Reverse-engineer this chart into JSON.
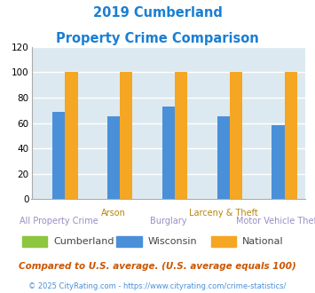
{
  "title_line1": "2019 Cumberland",
  "title_line2": "Property Crime Comparison",
  "title_color": "#1a7fd4",
  "groups": [
    "All Property Crime",
    "Arson",
    "Burglary",
    "Larceny & Theft",
    "Motor Vehicle Theft"
  ],
  "xtick_labels_row1": [
    "",
    "Arson",
    "",
    "Larceny & Theft",
    ""
  ],
  "xtick_labels_row2": [
    "All Property Crime",
    "",
    "Burglary",
    "",
    "Motor Vehicle Theft"
  ],
  "series": {
    "Cumberland": {
      "color": "#8dc63f",
      "values": [
        0,
        0,
        0,
        0,
        0
      ]
    },
    "Wisconsin": {
      "color": "#4a90d9",
      "values": [
        69,
        65,
        73,
        65,
        58
      ]
    },
    "National": {
      "color": "#f5a623",
      "values": [
        100,
        100,
        100,
        100,
        100
      ]
    }
  },
  "ylim": [
    0,
    120
  ],
  "yticks": [
    0,
    20,
    40,
    60,
    80,
    100,
    120
  ],
  "plot_bg_color": "#dce9f0",
  "grid_color": "#ffffff",
  "xlabel_color_row1": "#b8860b",
  "xlabel_color_row2": "#9b8ec4",
  "legend_labels": [
    "Cumberland",
    "Wisconsin",
    "National"
  ],
  "legend_colors": [
    "#8dc63f",
    "#4a90d9",
    "#f5a623"
  ],
  "footnote1": "Compared to U.S. average. (U.S. average equals 100)",
  "footnote2": "© 2025 CityRating.com - https://www.cityrating.com/crime-statistics/",
  "footnote1_color": "#cc5500",
  "footnote2_color": "#4a90d9",
  "footnote2_prefix_color": "#888888"
}
